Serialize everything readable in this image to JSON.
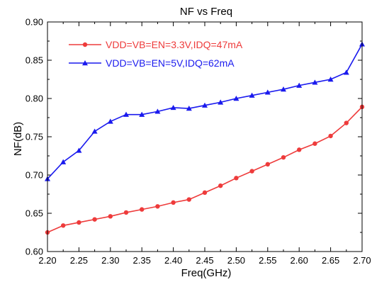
{
  "chart_data": {
    "type": "line",
    "title": "NF vs Freq",
    "xlabel": "Freq(GHz)",
    "ylabel": "NF(dB)",
    "xlim": [
      2.2,
      2.7
    ],
    "ylim": [
      0.6,
      0.9
    ],
    "x_ticks": [
      "2.20",
      "2.25",
      "2.30",
      "2.35",
      "2.40",
      "2.45",
      "2.50",
      "2.55",
      "2.60",
      "2.65",
      "2.70"
    ],
    "y_ticks": [
      "0.60",
      "0.65",
      "0.70",
      "0.75",
      "0.80",
      "0.85",
      "0.90"
    ],
    "grid": false,
    "legend_position": "top-left",
    "x": [
      2.2,
      2.225,
      2.25,
      2.275,
      2.3,
      2.325,
      2.35,
      2.375,
      2.4,
      2.425,
      2.45,
      2.475,
      2.5,
      2.525,
      2.55,
      2.575,
      2.6,
      2.625,
      2.65,
      2.675,
      2.7
    ],
    "series": [
      {
        "name": "VDD=VB=EN=3.3V,IDQ=47mA",
        "color": "#ee3b3b",
        "marker": "circle",
        "values": [
          0.625,
          0.634,
          0.638,
          0.642,
          0.646,
          0.651,
          0.655,
          0.659,
          0.664,
          0.668,
          0.677,
          0.686,
          0.696,
          0.705,
          0.714,
          0.723,
          0.733,
          0.741,
          0.751,
          0.768,
          0.789
        ]
      },
      {
        "name": "VDD=VB=EN=5V,IDQ=62mA",
        "color": "#1a1aee",
        "marker": "triangle",
        "values": [
          0.695,
          0.717,
          0.732,
          0.757,
          0.77,
          0.779,
          0.779,
          0.783,
          0.788,
          0.787,
          0.791,
          0.795,
          0.8,
          0.804,
          0.808,
          0.812,
          0.817,
          0.821,
          0.825,
          0.834,
          0.871
        ]
      }
    ]
  }
}
